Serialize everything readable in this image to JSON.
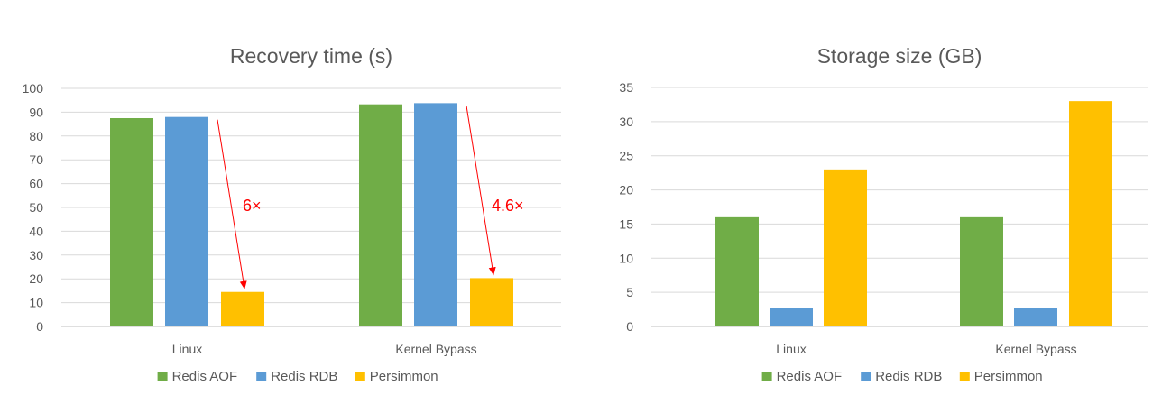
{
  "chart_data": [
    {
      "type": "bar",
      "title": "Recovery time (s)",
      "categories": [
        "Linux",
        "Kernel Bypass"
      ],
      "series": [
        {
          "name": "Redis AOF",
          "values": [
            87.5,
            93.3
          ]
        },
        {
          "name": "Redis RDB",
          "values": [
            88.0,
            93.8
          ]
        },
        {
          "name": "Persimmon",
          "values": [
            14.5,
            20.3
          ]
        }
      ],
      "ylim": [
        0,
        100
      ],
      "yticks": [
        0,
        10,
        20,
        30,
        40,
        50,
        60,
        70,
        80,
        90,
        100
      ],
      "xlabel": "",
      "ylabel": "",
      "grid": true,
      "legend": "bottom",
      "annotations": [
        {
          "text": "6×",
          "category": "Linux"
        },
        {
          "text": "4.6×",
          "category": "Kernel Bypass"
        }
      ]
    },
    {
      "type": "bar",
      "title": "Storage size (GB)",
      "categories": [
        "Linux",
        "Kernel Bypass"
      ],
      "series": [
        {
          "name": "Redis AOF",
          "values": [
            16,
            16
          ]
        },
        {
          "name": "Redis RDB",
          "values": [
            2.7,
            2.7
          ]
        },
        {
          "name": "Persimmon",
          "values": [
            23,
            33
          ]
        }
      ],
      "ylim": [
        0,
        35
      ],
      "yticks": [
        0,
        5,
        10,
        15,
        20,
        25,
        30,
        35
      ],
      "xlabel": "",
      "ylabel": "",
      "grid": true,
      "legend": "bottom"
    }
  ],
  "colors": {
    "Redis AOF": "#70AD47",
    "Redis RDB": "#5B9BD5",
    "Persimmon": "#FFC000",
    "annotation": "#FF0000"
  }
}
